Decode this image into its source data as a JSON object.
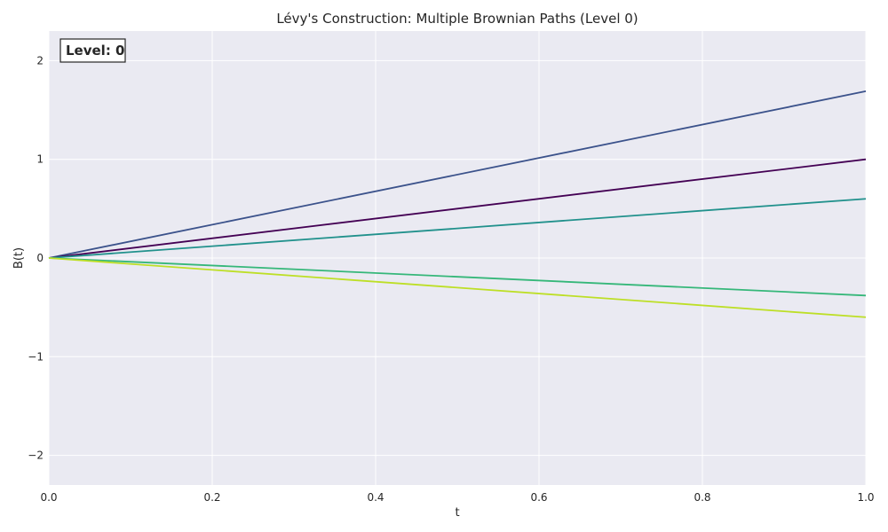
{
  "chart_data": {
    "type": "line",
    "title": "Lévy's Construction: Multiple Brownian Paths (Level 0)",
    "xlabel": "t",
    "ylabel": "B(t)",
    "xlim": [
      0.0,
      1.0
    ],
    "ylim": [
      -2.3,
      2.3
    ],
    "xticks": [
      0.0,
      0.2,
      0.4,
      0.6,
      0.8,
      1.0
    ],
    "xtick_labels": [
      "0.0",
      "0.2",
      "0.4",
      "0.6",
      "0.8",
      "1.0"
    ],
    "yticks": [
      -2,
      -1,
      0,
      1,
      2
    ],
    "ytick_labels": [
      "−2",
      "−1",
      "0",
      "1",
      "2"
    ],
    "grid": true,
    "annotation": "Level: 0",
    "series": [
      {
        "x": [
          0,
          1
        ],
        "y": [
          0,
          1.69
        ],
        "color": "#3b528b"
      },
      {
        "x": [
          0,
          1
        ],
        "y": [
          0,
          1.0
        ],
        "color": "#440154"
      },
      {
        "x": [
          0,
          1
        ],
        "y": [
          0,
          0.6
        ],
        "color": "#21918c"
      },
      {
        "x": [
          0,
          1
        ],
        "y": [
          0,
          -0.38
        ],
        "color": "#35b779"
      },
      {
        "x": [
          0,
          1
        ],
        "y": [
          0,
          -0.6
        ],
        "color": "#bddf26"
      }
    ]
  }
}
